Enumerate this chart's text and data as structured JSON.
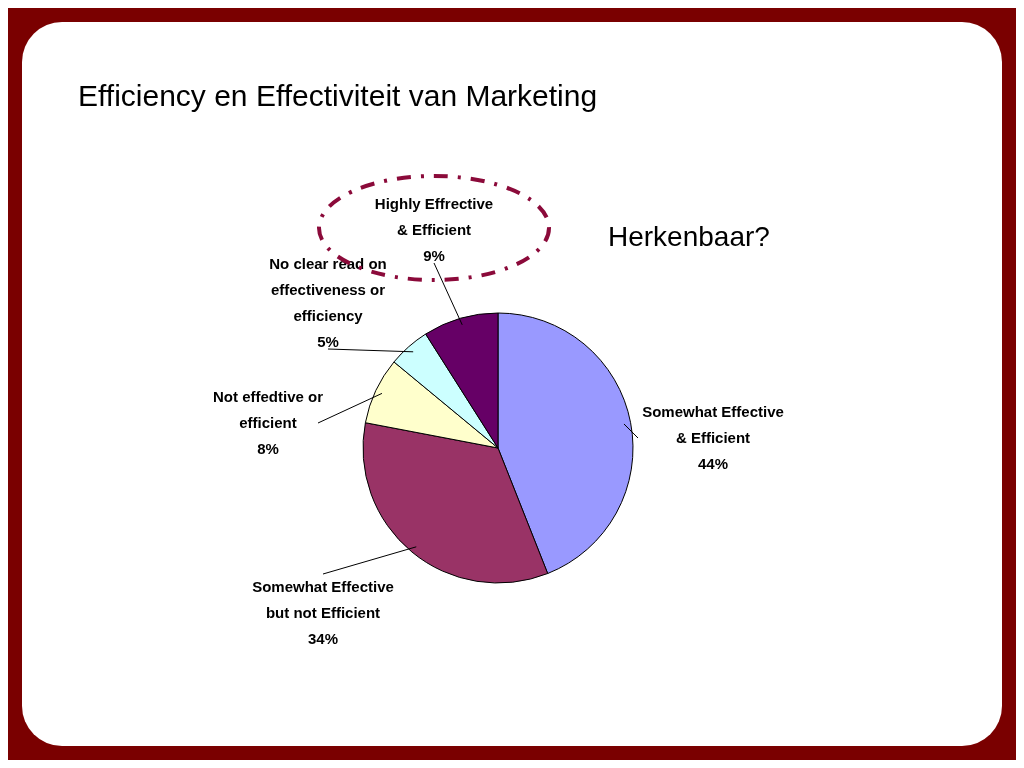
{
  "chart_data": {
    "type": "pie",
    "title": "Efficiency en Effectiviteit van Marketing",
    "categories": [
      "Somewhat Effective & Efficient",
      "Somewhat Effective but not Efficient",
      "Not effedtive or efficient",
      "No clear read on effectiveness or efficiency",
      "Highly Effrective & Efficient"
    ],
    "values": [
      44,
      34,
      8,
      5,
      9
    ],
    "colors": [
      "#9999ff",
      "#993366",
      "#ffffcc",
      "#ccffff",
      "#660066"
    ],
    "value_labels": [
      "44%",
      "34%",
      "8%",
      "5%",
      "9%"
    ],
    "annotations": [
      "Herkenbaar?"
    ]
  }
}
